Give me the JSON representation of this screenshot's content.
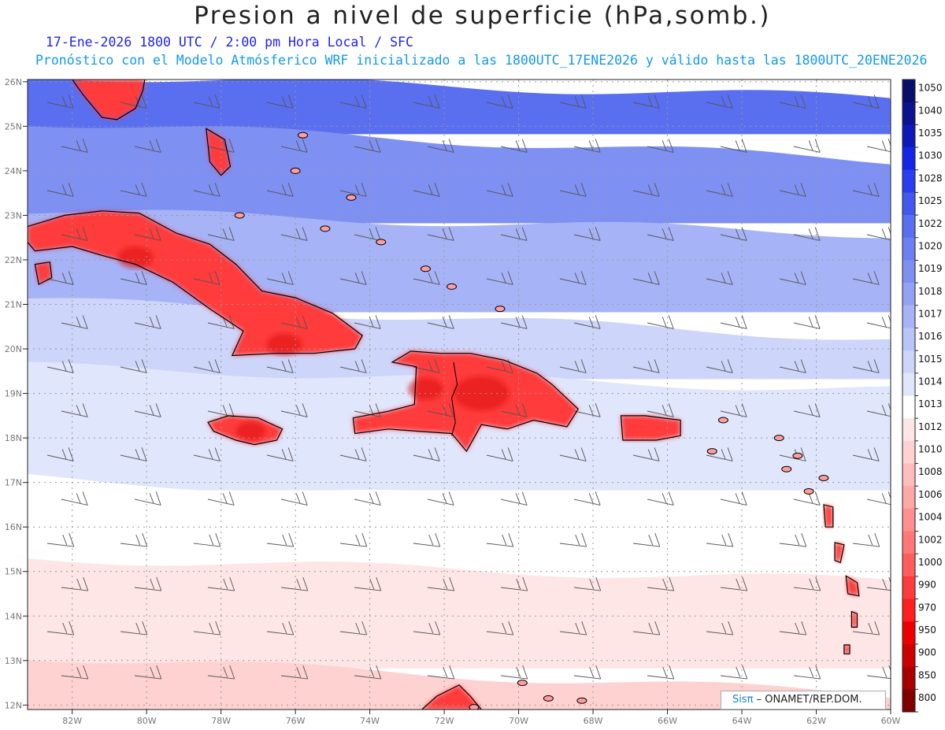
{
  "title": "Presion a nivel de superficie (hPa,somb.)",
  "subtitle_line1": "17-Ene-2026      1800 UTC / 2:00 pm Hora Local / SFC",
  "subtitle_line2": "Pronóstico con el Modelo Atmósferico WRF inicializado a las 1800UTC_17ENE2026 y válido hasta las  1800UTC_20ENE2026",
  "credit": {
    "brand": "Sisπ",
    "text": "– ONAMET/REP.DOM."
  },
  "map": {
    "lat_range": [
      11.9,
      26.05
    ],
    "lon_range": [
      -83.2,
      -60.0
    ],
    "lat_labels": [
      "26N",
      "25N",
      "24N",
      "23N",
      "22N",
      "21N",
      "20N",
      "19N",
      "18N",
      "17N",
      "16N",
      "15N",
      "14N",
      "13N",
      "12N"
    ],
    "lon_labels": [
      "82W",
      "80W",
      "78W",
      "76W",
      "74W",
      "72W",
      "70W",
      "68W",
      "66W",
      "64W",
      "62W",
      "60W"
    ],
    "gridlines": "dotted",
    "wind_barbs": true
  },
  "colorbar": {
    "placement": "right",
    "levels": [
      "1050",
      "1040",
      "1035",
      "1030",
      "1028",
      "1025",
      "1022",
      "1020",
      "1019",
      "1018",
      "1017",
      "1016",
      "1015",
      "1014",
      "1013",
      "1012",
      "1010",
      "1008",
      "1006",
      "1004",
      "1002",
      "1000",
      "990",
      "970",
      "950",
      "900",
      "850",
      "800"
    ],
    "colors": [
      "#0a0d6b",
      "#0c1290",
      "#0f19b8",
      "#1525e8",
      "#2a3ef0",
      "#4258ee",
      "#5a6ff0",
      "#6c80f2",
      "#7f90f3",
      "#93a2f5",
      "#a6b3f7",
      "#b9c4f8",
      "#cdd5fa",
      "#e0e6fc",
      "#ffffff",
      "#ffe6e6",
      "#ffd2d2",
      "#ffbdbd",
      "#ffa8a8",
      "#ff9090",
      "#ff7777",
      "#ff5c5c",
      "#ff3b3b",
      "#ff1f1f",
      "#ee0000",
      "#cc0000",
      "#a80000",
      "#800000"
    ]
  },
  "fields": {
    "pressure_bands": [
      {
        "lat_from": 25.0,
        "lat_to": 26.05,
        "color": "#5a6ff0"
      },
      {
        "lat_from": 23.0,
        "lat_to": 25.0,
        "color": "#7f90f3"
      },
      {
        "lat_from": 21.0,
        "lat_to": 23.0,
        "color": "#a6b3f7"
      },
      {
        "lat_from": 19.5,
        "lat_to": 21.0,
        "color": "#cdd5fa"
      },
      {
        "lat_from": 17.0,
        "lat_to": 19.5,
        "color": "#e0e6fc"
      },
      {
        "lat_from": 15.2,
        "lat_to": 17.0,
        "color": "#ffffff"
      },
      {
        "lat_from": 13.0,
        "lat_to": 15.2,
        "color": "#ffe6e6"
      },
      {
        "lat_from": 11.9,
        "lat_to": 13.0,
        "color": "#ffd2d2"
      }
    ],
    "land_color": "#ff3b3b",
    "land_highlight_color": "#dd1111"
  }
}
